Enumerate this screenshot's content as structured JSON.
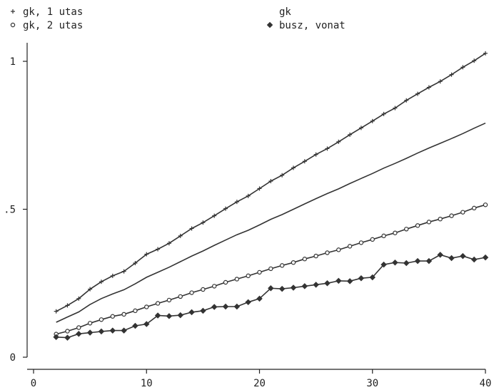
{
  "chart_data": {
    "type": "line",
    "title": "",
    "xlabel": "",
    "ylabel": "",
    "xlim": [
      0,
      40
    ],
    "ylim": [
      0,
      1.0
    ],
    "x_ticks": [
      0,
      10,
      20,
      30,
      40
    ],
    "x_tick_labels": [
      "0",
      "10",
      "20",
      "30",
      "40"
    ],
    "y_ticks": [
      0,
      0.5,
      1.0
    ],
    "y_tick_labels": [
      "0",
      ".5",
      "1"
    ],
    "grid": false,
    "legend_position": "top",
    "x": [
      2,
      3,
      4,
      5,
      6,
      7,
      8,
      9,
      10,
      11,
      12,
      13,
      14,
      15,
      16,
      17,
      18,
      19,
      20,
      21,
      22,
      23,
      24,
      25,
      26,
      27,
      28,
      29,
      30,
      31,
      32,
      33,
      34,
      35,
      36,
      37,
      38,
      39,
      40
    ],
    "series": [
      {
        "name": "gk, 1 utas",
        "marker": "plus",
        "values": [
          0.155,
          0.175,
          0.198,
          0.23,
          0.255,
          0.275,
          0.29,
          0.318,
          0.348,
          0.365,
          0.385,
          0.41,
          0.435,
          0.455,
          0.478,
          0.502,
          0.525,
          0.545,
          0.57,
          0.595,
          0.615,
          0.64,
          0.662,
          0.685,
          0.705,
          0.728,
          0.752,
          0.775,
          0.798,
          0.822,
          0.842,
          0.868,
          0.89,
          0.912,
          0.932,
          0.955,
          0.98,
          1.002,
          1.027
        ]
      },
      {
        "name": "gk",
        "marker": "none",
        "values": [
          0.118,
          0.136,
          0.153,
          0.178,
          0.198,
          0.214,
          0.228,
          0.248,
          0.27,
          0.287,
          0.304,
          0.323,
          0.342,
          0.359,
          0.378,
          0.396,
          0.414,
          0.429,
          0.447,
          0.466,
          0.482,
          0.5,
          0.518,
          0.536,
          0.553,
          0.569,
          0.587,
          0.604,
          0.621,
          0.639,
          0.655,
          0.672,
          0.69,
          0.707,
          0.723,
          0.739,
          0.756,
          0.774,
          0.791
        ]
      },
      {
        "name": "gk, 2 utas",
        "marker": "circle",
        "values": [
          0.078,
          0.088,
          0.1,
          0.115,
          0.127,
          0.138,
          0.145,
          0.157,
          0.17,
          0.182,
          0.193,
          0.205,
          0.218,
          0.229,
          0.24,
          0.253,
          0.264,
          0.275,
          0.287,
          0.299,
          0.31,
          0.32,
          0.332,
          0.342,
          0.353,
          0.363,
          0.375,
          0.387,
          0.398,
          0.41,
          0.42,
          0.433,
          0.445,
          0.457,
          0.467,
          0.478,
          0.49,
          0.504,
          0.515
        ]
      },
      {
        "name": "busz, vonat",
        "marker": "diamond",
        "values": [
          0.068,
          0.066,
          0.079,
          0.083,
          0.087,
          0.09,
          0.09,
          0.106,
          0.112,
          0.141,
          0.139,
          0.142,
          0.152,
          0.157,
          0.17,
          0.171,
          0.171,
          0.186,
          0.198,
          0.233,
          0.231,
          0.235,
          0.24,
          0.245,
          0.25,
          0.258,
          0.257,
          0.267,
          0.27,
          0.313,
          0.32,
          0.318,
          0.325,
          0.325,
          0.346,
          0.335,
          0.342,
          0.33,
          0.337
        ]
      }
    ],
    "legend": [
      {
        "label": "gk, 1 utas",
        "marker": "plus"
      },
      {
        "label": "gk, 2 utas",
        "marker": "circle"
      },
      {
        "label": "gk",
        "marker": "none"
      },
      {
        "label": "busz, vonat",
        "marker": "diamond"
      }
    ]
  }
}
